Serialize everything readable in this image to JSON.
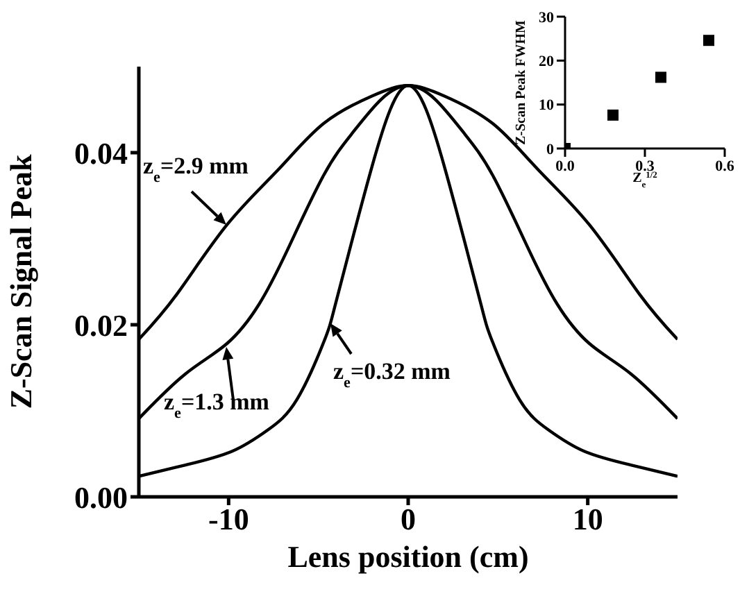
{
  "chart_data": [
    {
      "type": "line",
      "xlabel": "Lens position (cm)",
      "ylabel": "Z-Scan Signal Peak",
      "xlim": [
        -15,
        15
      ],
      "xticks": [
        -10,
        0,
        10
      ],
      "ylim": [
        0,
        0.05
      ],
      "yticks": [
        {
          "value": 0,
          "label": "0.00"
        },
        {
          "value": 0.02,
          "label": "0.02"
        },
        {
          "value": 0.04,
          "label": "0.04"
        }
      ],
      "marker": "none",
      "series": [
        {
          "color": "#000000",
          "x": [
            -15,
            -12.9,
            -10.1,
            -7.2,
            -4.7,
            -2,
            0,
            2,
            4.7,
            7.2,
            10.1,
            12.9,
            15
          ],
          "values": [
            0.0183,
            0.0235,
            0.0316,
            0.0381,
            0.0434,
            0.0466,
            0.0478,
            0.0466,
            0.0434,
            0.0381,
            0.0316,
            0.0235,
            0.0183
          ]
        },
        {
          "color": "#000000",
          "x": [
            -15,
            -12.4,
            -10.1,
            -8.3,
            -6.7,
            -4.7,
            -3.1,
            -1.5,
            0,
            1.5,
            3.1,
            4.7,
            6.7,
            8.3,
            10.1,
            12.4,
            15
          ],
          "values": [
            0.0091,
            0.0143,
            0.0178,
            0.0224,
            0.0288,
            0.0374,
            0.0423,
            0.0462,
            0.0478,
            0.0462,
            0.0423,
            0.0374,
            0.0288,
            0.0224,
            0.0178,
            0.0143,
            0.0091
          ]
        },
        {
          "color": "#000000",
          "x": [
            -15,
            -12.4,
            -9.8,
            -7.8,
            -6.2,
            -4.7,
            -4.1,
            -3.1,
            -2,
            -1,
            0,
            1,
            2,
            3.1,
            4.1,
            4.7,
            6.2,
            7.8,
            9.8,
            12.4,
            15
          ],
          "values": [
            0.0024,
            0.0037,
            0.0053,
            0.0078,
            0.0113,
            0.018,
            0.022,
            0.03,
            0.0385,
            0.045,
            0.0478,
            0.045,
            0.0385,
            0.03,
            0.022,
            0.018,
            0.0113,
            0.0078,
            0.0053,
            0.0037,
            0.0024
          ]
        }
      ],
      "annotations": [
        "z$_{e}$=2.9 mm",
        "z$_{e}$=1.3 mm",
        "z$_{e}$=0.32 mm"
      ]
    },
    {
      "type": "scatter",
      "xlabel": "Z$_{e}$$^{1/2}$",
      "ylabel": "Z-Scan Peak FWHM",
      "xlim": [
        0,
        0.6
      ],
      "xticks": [
        {
          "value": 0,
          "label": "0.0"
        },
        {
          "value": 0.3,
          "label": "0.3"
        },
        {
          "value": 0.6,
          "label": "0.6"
        }
      ],
      "ylim": [
        0,
        30
      ],
      "yticks": [
        0,
        10,
        20,
        30
      ],
      "marker": "square",
      "series": [
        {
          "color": "#000000",
          "x": [
            0,
            0.18,
            0.36,
            0.54
          ],
          "values": [
            0,
            7.6,
            16.2,
            24.6
          ]
        }
      ]
    }
  ]
}
